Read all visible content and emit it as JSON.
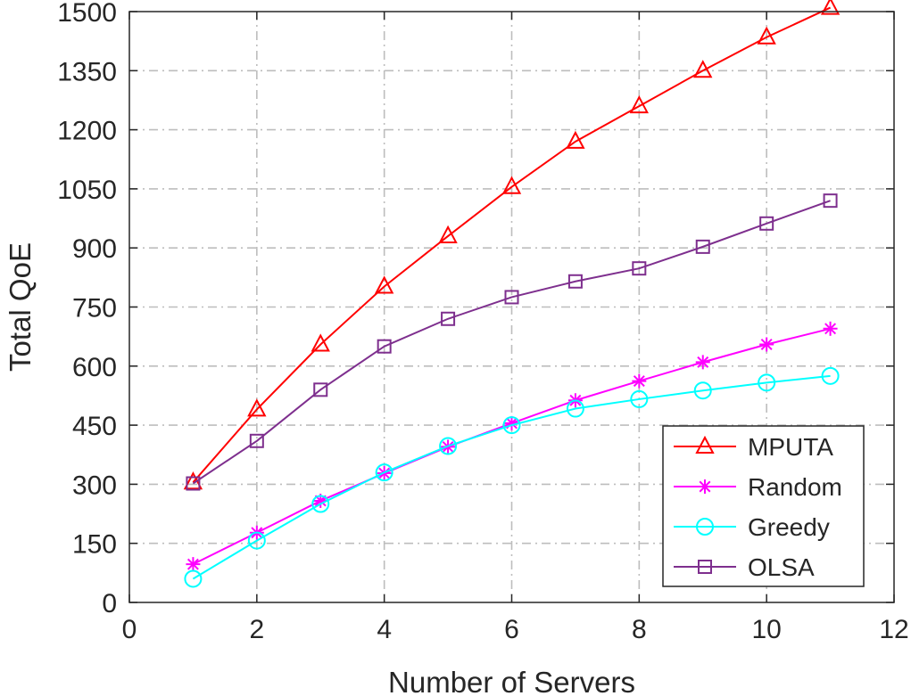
{
  "chart_data": {
    "type": "line",
    "xlabel": "Number of Servers",
    "ylabel": "Total QoE",
    "xlim": [
      0,
      12
    ],
    "ylim": [
      0,
      1500
    ],
    "xticks": [
      0,
      2,
      4,
      6,
      8,
      10,
      12
    ],
    "yticks": [
      0,
      150,
      300,
      450,
      600,
      750,
      900,
      1050,
      1200,
      1350,
      1500
    ],
    "grid": true,
    "legend_position": "bottom-right",
    "x": [
      1,
      2,
      3,
      4,
      5,
      6,
      7,
      8,
      9,
      10,
      11
    ],
    "series": [
      {
        "name": "MPUTA",
        "color": "#ff0000",
        "marker": "triangle",
        "values": [
          305,
          490,
          655,
          802,
          930,
          1055,
          1170,
          1260,
          1350,
          1435,
          1510
        ]
      },
      {
        "name": "Random",
        "color": "#ff00ff",
        "marker": "asterisk",
        "values": [
          97,
          177,
          258,
          328,
          395,
          455,
          513,
          562,
          610,
          655,
          695
        ]
      },
      {
        "name": "Greedy",
        "color": "#00ffff",
        "marker": "circle",
        "values": [
          60,
          157,
          250,
          330,
          397,
          450,
          492,
          516,
          538,
          558,
          575
        ]
      },
      {
        "name": "OLSA",
        "color": "#7e2f8e",
        "marker": "square",
        "values": [
          302,
          410,
          540,
          650,
          720,
          775,
          815,
          848,
          903,
          962,
          1020
        ]
      }
    ]
  }
}
